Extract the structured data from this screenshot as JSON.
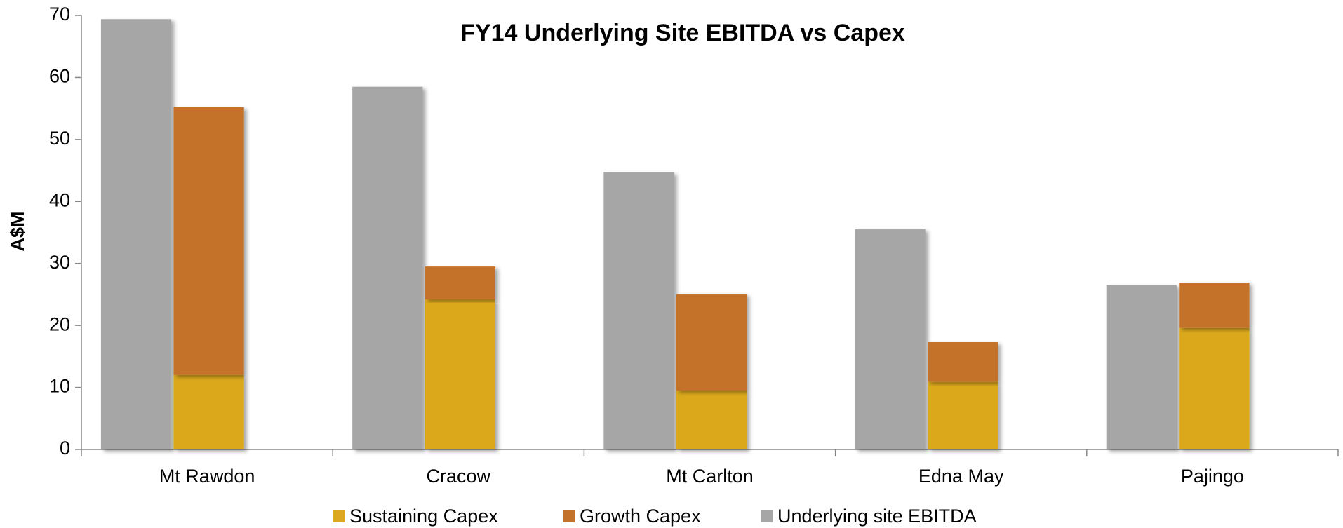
{
  "chart_data": {
    "type": "bar",
    "title": "FY14 Underlying Site EBITDA vs Capex",
    "y_label": "A$M",
    "categories": [
      "Mt Rawdon",
      "Cracow",
      "Mt Carlton",
      "Edna May",
      "Pajingo"
    ],
    "series": [
      {
        "name": "Sustaining Capex",
        "color": "#dba81f",
        "values": [
          12.0,
          24.2,
          9.5,
          10.9,
          19.6
        ]
      },
      {
        "name": "Growth Capex",
        "color": "#c4722a",
        "values": [
          43.2,
          5.3,
          15.6,
          6.4,
          7.3
        ]
      },
      {
        "name": "Underlying site EBITDA",
        "color": "#a6a6a6",
        "values": [
          69.4,
          58.5,
          44.7,
          35.5,
          26.5
        ]
      }
    ],
    "ylim": [
      0,
      70
    ],
    "yticks": [
      0,
      10,
      20,
      30,
      40,
      50,
      60,
      70
    ]
  }
}
